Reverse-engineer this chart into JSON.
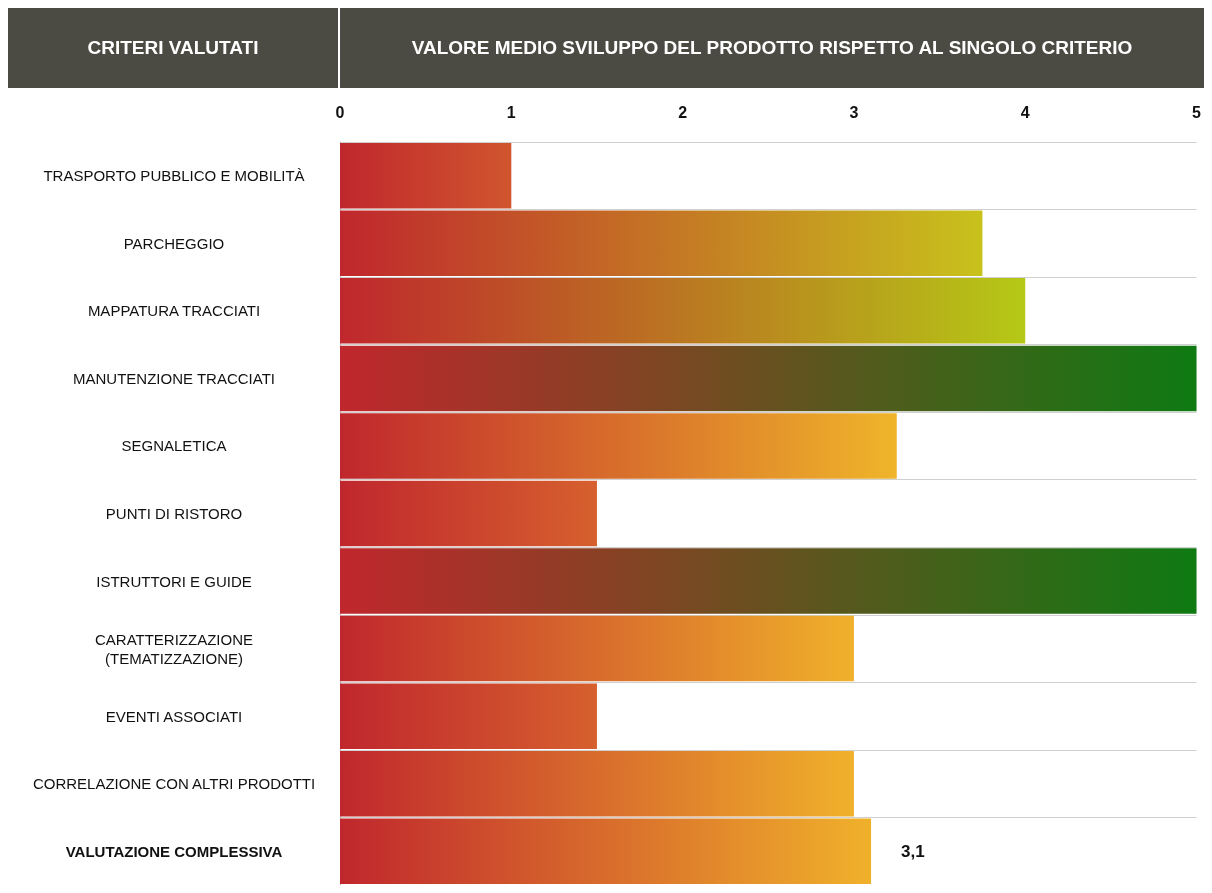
{
  "chart_data": {
    "type": "bar",
    "orientation": "horizontal",
    "title": "VALORE MEDIO SVILUPPO DEL PRODOTTO RISPETTO AL SINGOLO CRITERIO",
    "ylabel": "CRITERI VALUTATI",
    "categories": [
      "TRASPORTO PUBBLICO E MOBILITÀ",
      "PARCHEGGIO",
      "MAPPATURA TRACCIATI",
      "MANUTENZIONE TRACCIATI",
      "SEGNALETICA",
      "PUNTI DI RISTORO",
      "ISTRUTTORI E GUIDE",
      "CARATTERIZZAZIONE\n(TEMATIZZAZIONE)",
      "EVENTI ASSOCIATI",
      "CORRELAZIONE CON ALTRI PRODOTTI",
      "VALUTAZIONE COMPLESSIVA"
    ],
    "values": [
      1.0,
      3.75,
      4.0,
      5.0,
      3.25,
      1.5,
      5.0,
      3.0,
      1.5,
      3.0,
      3.1
    ],
    "color": "#c0272d",
    "colors": [
      "#d0562e",
      "#c8c21c",
      "#b5c816",
      "#0e7a12",
      "#efb52a",
      "#d6602e",
      "#0e7a12",
      "#f0b12b",
      "#d6602e",
      "#f0b12b",
      "#f0b12b"
    ],
    "value_labels": [
      null,
      null,
      null,
      null,
      null,
      null,
      null,
      null,
      null,
      null,
      "3,1"
    ],
    "xlim": [
      0,
      5
    ],
    "xticks": [
      0,
      1,
      2,
      3,
      4,
      5
    ],
    "grid": "y"
  }
}
